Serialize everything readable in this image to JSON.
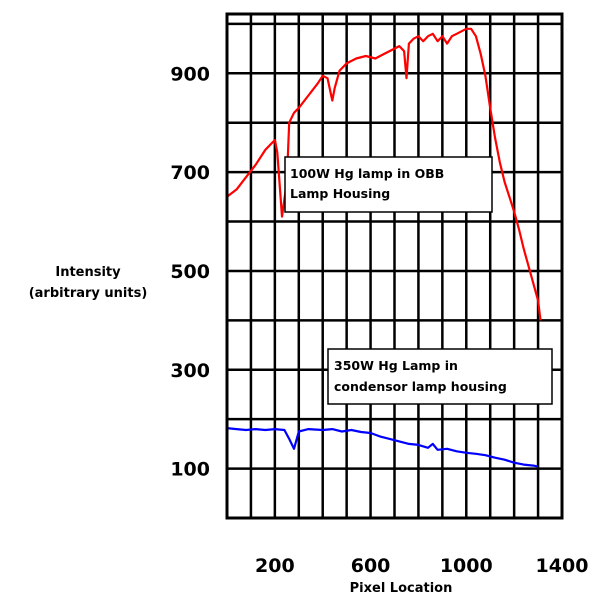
{
  "chart_data": {
    "type": "line",
    "title": "",
    "xlabel": "Pixel Location",
    "ylabel_lines": [
      "Intensity",
      "(arbitrary units)"
    ],
    "xlim": [
      0,
      1400
    ],
    "ylim": [
      0,
      1020
    ],
    "xticks": [
      200,
      600,
      1000,
      1400
    ],
    "yticks": [
      100,
      300,
      500,
      700,
      900
    ],
    "grid": true,
    "annotations": [
      {
        "id": "obb",
        "lines": [
          "100W Hg lamp in OBB",
          "Lamp Housing"
        ]
      },
      {
        "id": "condensor",
        "lines": [
          "350W Hg Lamp in",
          "condensor lamp housing"
        ]
      }
    ],
    "series": [
      {
        "color": "#ff0000",
        "x": [
          0,
          40,
          80,
          120,
          160,
          180,
          200,
          210,
          230,
          250,
          260,
          280,
          300,
          340,
          380,
          400,
          420,
          440,
          450,
          470,
          500,
          540,
          580,
          620,
          660,
          700,
          720,
          740,
          750,
          760,
          780,
          800,
          820,
          840,
          860,
          880,
          900,
          920,
          940,
          960,
          980,
          1000,
          1020,
          1040,
          1060,
          1080,
          1100,
          1120,
          1140,
          1160,
          1180,
          1200,
          1220,
          1240,
          1260,
          1280,
          1300,
          1310
        ],
        "y": [
          650,
          665,
          690,
          715,
          745,
          755,
          765,
          740,
          610,
          680,
          800,
          820,
          830,
          855,
          880,
          895,
          890,
          845,
          870,
          905,
          920,
          930,
          935,
          930,
          940,
          950,
          955,
          945,
          890,
          960,
          970,
          975,
          965,
          975,
          980,
          965,
          975,
          960,
          975,
          980,
          985,
          990,
          990,
          975,
          940,
          895,
          830,
          770,
          720,
          680,
          650,
          620,
          585,
          545,
          510,
          475,
          440,
          400
        ]
      },
      {
        "color": "#0000ff",
        "x": [
          0,
          40,
          80,
          120,
          160,
          200,
          240,
          260,
          280,
          300,
          340,
          400,
          440,
          480,
          520,
          560,
          600,
          640,
          680,
          720,
          760,
          800,
          840,
          860,
          880,
          920,
          960,
          1000,
          1040,
          1080,
          1120,
          1160,
          1200,
          1240,
          1280,
          1300
        ],
        "y": [
          182,
          180,
          178,
          180,
          178,
          180,
          178,
          160,
          140,
          175,
          180,
          178,
          180,
          175,
          178,
          174,
          172,
          165,
          160,
          155,
          150,
          148,
          142,
          150,
          138,
          140,
          135,
          132,
          130,
          127,
          122,
          118,
          112,
          108,
          106,
          104
        ]
      }
    ]
  }
}
